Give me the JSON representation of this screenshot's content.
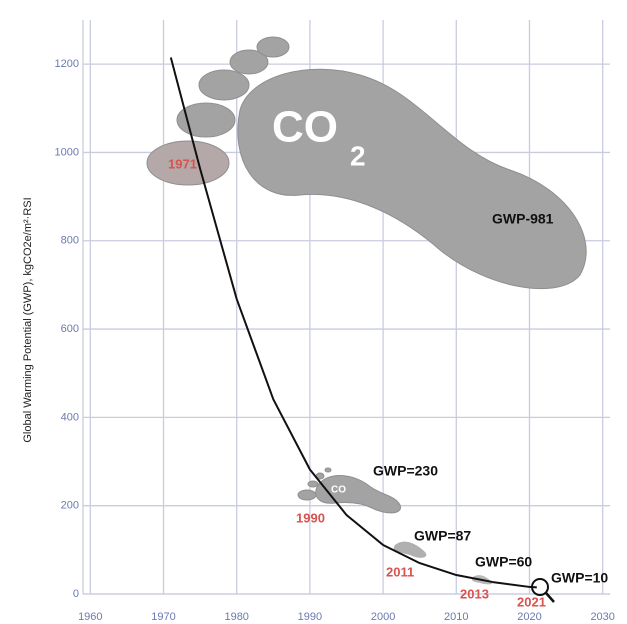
{
  "chart_data": {
    "type": "line",
    "y_label": "Global Warming Potential (GWP),  kgCO2e/m²·RSI",
    "x": [
      1971,
      1975,
      1980,
      1985,
      1990,
      1995,
      2000,
      2005,
      2010,
      2015,
      2020,
      2021
    ],
    "series": [
      {
        "name": "GWP",
        "color": "#111111",
        "values": [
          1215,
          963,
          668,
          441,
          282,
          179,
          111,
          70,
          43,
          27,
          16,
          15
        ]
      }
    ],
    "xlim": [
      1959,
      2031
    ],
    "xticks": [
      1960,
      1970,
      1980,
      1990,
      2000,
      2010,
      2020,
      2030
    ],
    "ylim": [
      0,
      1300
    ],
    "yticks": [
      0,
      200,
      400,
      600,
      800,
      1000,
      1200
    ],
    "grid": true,
    "footprint_text": [
      "CO",
      "2",
      "CO"
    ],
    "annotations": [
      "GWP-981",
      "1971",
      "GWP=230",
      "1990",
      "GWP=87",
      "2011",
      "GWP=60",
      "2013",
      "GWP=10",
      "2021"
    ]
  }
}
